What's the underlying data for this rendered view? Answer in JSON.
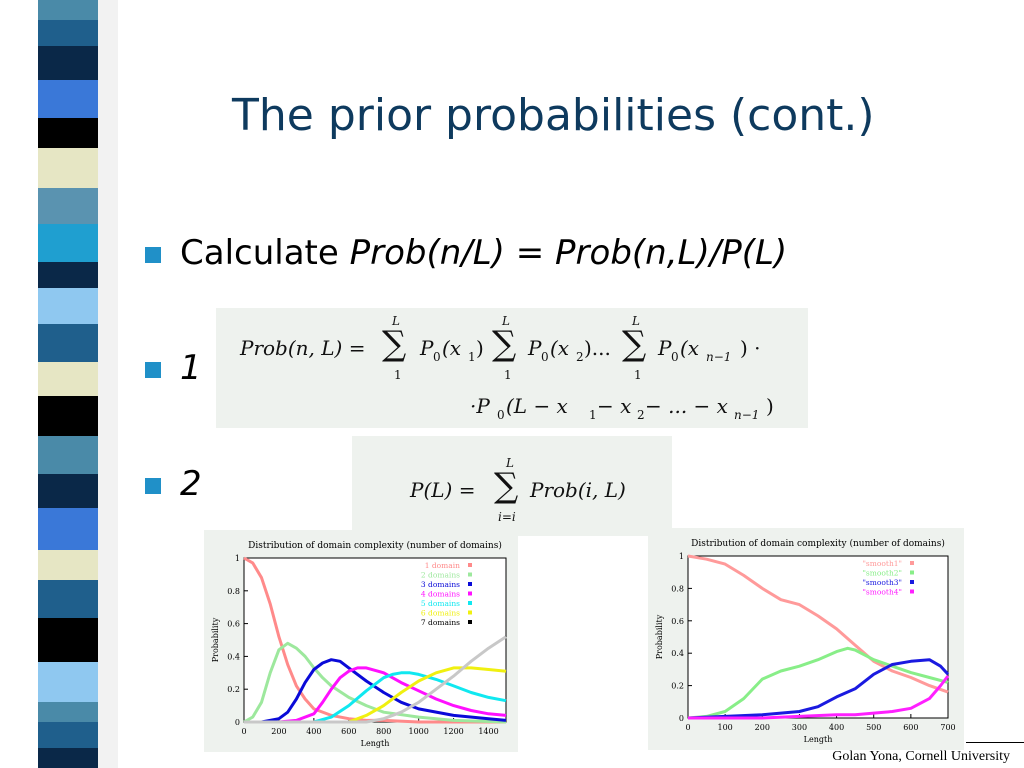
{
  "slide": {
    "title": "The prior probabilities (cont.)",
    "bullets": [
      {
        "label": "Calculate ",
        "formula": "Prob(n/L) = Prob(n,L)/P(L)"
      },
      {
        "label": "1"
      },
      {
        "label": "2"
      }
    ],
    "formula1": {
      "lhs": "Prob(n, L) =",
      "P0x1": "P",
      "x1": "(x",
      "x1sub": "1",
      "x2": "(x",
      "x2sub": "2",
      "dots": ")...",
      "xn1": "(x",
      "xn1sub": "n−1",
      "tail": ") ·",
      "line2": "·P",
      "line2b": "(L − x",
      "line2c": " − x",
      "line2d": " − ... − x",
      "line2e": ")",
      "sub0": "0",
      "sum_top": "L",
      "sum_bottom": "1"
    },
    "formula2": {
      "lhs": "P(L) =",
      "rhs": "Prob(i, L)",
      "sum_top": "L",
      "sum_bottom": "i=i"
    },
    "footer": "Golan Yona, Cornell University",
    "stripe_colors": [
      "#4a8aa8",
      "#1f5f8c",
      "#0a2848",
      "#3a78d8",
      "#000000",
      "#e6e6c4",
      "#5a93b0",
      "#1f9fd0",
      "#0a2848",
      "#8fc8f0",
      "#1f5f8c",
      "#e6e6c4",
      "#000000",
      "#4a8aa8",
      "#0a2848",
      "#3a78d8",
      "#e6e6c4",
      "#1f5f8c",
      "#000000",
      "#8fc8f0"
    ]
  },
  "chart_data": [
    {
      "type": "line",
      "title": "Distribution of domain complexity (number of domains)",
      "xlabel": "Length",
      "ylabel": "Probability",
      "xlim": [
        0,
        1500
      ],
      "ylim": [
        0,
        1
      ],
      "xticks": [
        0,
        200,
        400,
        600,
        800,
        1000,
        1200,
        1400
      ],
      "yticks": [
        0,
        0.2,
        0.4,
        0.6,
        0.8,
        1
      ],
      "legend_position": "top-right",
      "series": [
        {
          "name": "1 domain",
          "color": "#ff8a8a",
          "x": [
            0,
            50,
            100,
            150,
            200,
            250,
            300,
            350,
            400,
            500,
            600,
            700,
            800,
            1000,
            1200,
            1500
          ],
          "y": [
            1,
            0.97,
            0.88,
            0.72,
            0.52,
            0.35,
            0.22,
            0.14,
            0.08,
            0.04,
            0.02,
            0.01,
            0.01,
            0,
            0,
            0
          ]
        },
        {
          "name": "2 domains",
          "color": "#9de89d",
          "x": [
            0,
            50,
            100,
            150,
            200,
            250,
            300,
            350,
            400,
            450,
            500,
            600,
            700,
            800,
            1000,
            1200,
            1500
          ],
          "y": [
            0,
            0.03,
            0.12,
            0.3,
            0.44,
            0.48,
            0.45,
            0.4,
            0.33,
            0.27,
            0.22,
            0.15,
            0.1,
            0.06,
            0.03,
            0.01,
            0
          ]
        },
        {
          "name": "3 domains",
          "color": "#0a0ad8",
          "x": [
            0,
            100,
            200,
            250,
            300,
            350,
            400,
            450,
            500,
            550,
            600,
            700,
            800,
            900,
            1000,
            1200,
            1400,
            1500
          ],
          "y": [
            0,
            0,
            0.02,
            0.06,
            0.14,
            0.24,
            0.32,
            0.36,
            0.38,
            0.37,
            0.33,
            0.25,
            0.18,
            0.12,
            0.08,
            0.04,
            0.02,
            0.01
          ]
        },
        {
          "name": "4 domains",
          "color": "#ff10ff",
          "x": [
            0,
            200,
            300,
            400,
            450,
            500,
            550,
            600,
            650,
            700,
            800,
            900,
            1000,
            1100,
            1200,
            1300,
            1400,
            1500
          ],
          "y": [
            0,
            0,
            0.01,
            0.05,
            0.12,
            0.2,
            0.27,
            0.31,
            0.33,
            0.33,
            0.3,
            0.24,
            0.19,
            0.14,
            0.1,
            0.07,
            0.05,
            0.04
          ]
        },
        {
          "name": "5 domains",
          "color": "#10e8f0",
          "x": [
            0,
            400,
            500,
            600,
            700,
            800,
            850,
            900,
            950,
            1000,
            1100,
            1200,
            1300,
            1400,
            1500
          ],
          "y": [
            0,
            0,
            0.03,
            0.1,
            0.19,
            0.27,
            0.29,
            0.3,
            0.3,
            0.29,
            0.26,
            0.22,
            0.18,
            0.15,
            0.13
          ]
        },
        {
          "name": "6 domains",
          "color": "#f0f010",
          "x": [
            0,
            600,
            700,
            800,
            900,
            1000,
            1100,
            1200,
            1300,
            1400,
            1500
          ],
          "y": [
            0,
            0,
            0.04,
            0.1,
            0.18,
            0.25,
            0.3,
            0.33,
            0.33,
            0.32,
            0.31
          ]
        },
        {
          "name": "7 domains",
          "color": "#c8c8c8",
          "x": [
            0,
            700,
            800,
            900,
            1000,
            1100,
            1200,
            1300,
            1400,
            1500
          ],
          "y": [
            0,
            0,
            0.02,
            0.06,
            0.12,
            0.2,
            0.28,
            0.37,
            0.45,
            0.52
          ]
        }
      ]
    },
    {
      "type": "line",
      "title": "Distribution of domain complexity (number of domains)",
      "xlabel": "Length",
      "ylabel": "Probability",
      "xlim": [
        0,
        700
      ],
      "ylim": [
        0,
        1
      ],
      "xticks": [
        0,
        100,
        200,
        300,
        400,
        500,
        600,
        700
      ],
      "yticks": [
        0,
        0.2,
        0.4,
        0.6,
        0.8,
        1
      ],
      "legend_position": "top-right",
      "series": [
        {
          "name": "\"smooth1\"",
          "color": "#ff9a9a",
          "x": [
            0,
            50,
            100,
            150,
            200,
            250,
            300,
            350,
            400,
            450,
            500,
            550,
            600,
            650,
            700
          ],
          "y": [
            1,
            0.98,
            0.95,
            0.88,
            0.8,
            0.73,
            0.7,
            0.63,
            0.55,
            0.45,
            0.35,
            0.29,
            0.25,
            0.2,
            0.16
          ]
        },
        {
          "name": "\"smooth2\"",
          "color": "#88ee88",
          "x": [
            0,
            50,
            100,
            150,
            200,
            250,
            300,
            350,
            400,
            430,
            450,
            500,
            550,
            600,
            650,
            700
          ],
          "y": [
            0,
            0.01,
            0.04,
            0.12,
            0.24,
            0.29,
            0.32,
            0.36,
            0.41,
            0.43,
            0.42,
            0.36,
            0.32,
            0.28,
            0.25,
            0.22
          ]
        },
        {
          "name": "\"smooth3\"",
          "color": "#1a1ae0",
          "x": [
            0,
            100,
            200,
            250,
            300,
            350,
            400,
            450,
            500,
            550,
            600,
            650,
            680,
            700
          ],
          "y": [
            0,
            0.01,
            0.02,
            0.03,
            0.04,
            0.07,
            0.13,
            0.18,
            0.27,
            0.33,
            0.35,
            0.36,
            0.32,
            0.27
          ]
        },
        {
          "name": "\"smooth4\"",
          "color": "#ff20ff",
          "x": [
            0,
            200,
            300,
            400,
            450,
            500,
            550,
            600,
            650,
            680,
            700
          ],
          "y": [
            0,
            0,
            0.01,
            0.02,
            0.02,
            0.03,
            0.04,
            0.06,
            0.12,
            0.2,
            0.26
          ]
        }
      ]
    }
  ]
}
